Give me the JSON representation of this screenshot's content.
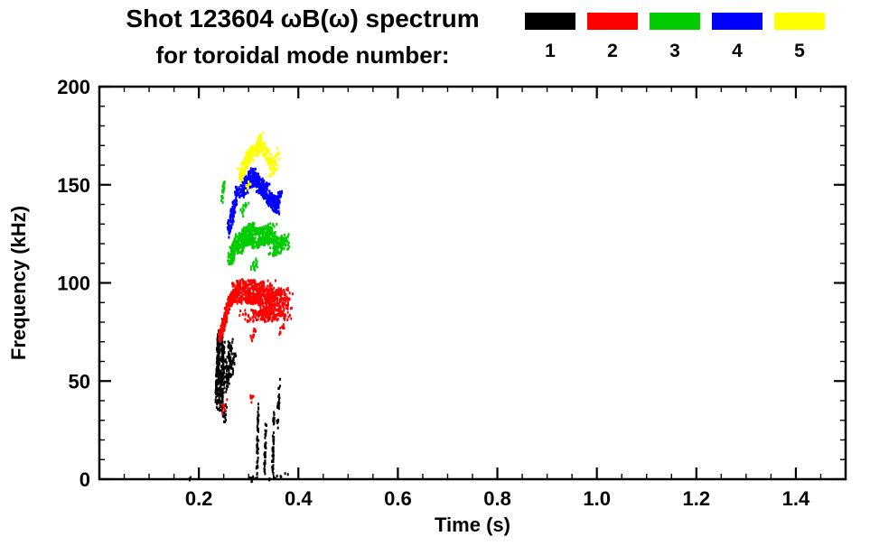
{
  "header": {
    "title_line1": "Shot 123604 ωB(ω) spectrum",
    "title_line2": "for toroidal mode number:"
  },
  "legend": {
    "items": [
      {
        "label": "1",
        "color": "#000000"
      },
      {
        "label": "2",
        "color": "#ff0000"
      },
      {
        "label": "3",
        "color": "#00cc00"
      },
      {
        "label": "4",
        "color": "#0000ff"
      },
      {
        "label": "5",
        "color": "#ffff00"
      }
    ]
  },
  "chart_data": {
    "type": "scatter",
    "title": "Shot 123604 ωB(ω) spectrum for toroidal mode number: 1-5",
    "xlabel": "Time (s)",
    "ylabel": "Frequency (kHz)",
    "xlim": [
      0,
      1.5
    ],
    "ylim": [
      0,
      200
    ],
    "xticks": [
      0.2,
      0.4,
      0.6,
      0.8,
      1.0,
      1.2,
      1.4
    ],
    "xtick_labels": [
      "0.2",
      "0.4",
      "0.6",
      "0.8",
      "1.0",
      "1.2",
      "1.4"
    ],
    "yticks": [
      0,
      50,
      100,
      150,
      200
    ],
    "ytick_labels": [
      "0",
      "50",
      "100",
      "150",
      "200"
    ],
    "x_minor_step": 0.05,
    "y_minor_step": 10,
    "grid": false,
    "legend_position": "top",
    "series": [
      {
        "name": "toroidal-mode-1",
        "label": "1",
        "mode": 1,
        "color": "#000000",
        "segments": [
          {
            "t": [
              0.234,
              0.238
            ],
            "f": [
              40,
              70
            ],
            "n": 150,
            "jt": 0.003,
            "jf": 4
          },
          {
            "t": [
              0.242,
              0.247
            ],
            "f": [
              38,
              72
            ],
            "n": 170,
            "jt": 0.004,
            "jf": 4
          },
          {
            "t": [
              0.252,
              0.262
            ],
            "f": [
              48,
              68
            ],
            "n": 90,
            "jt": 0.005,
            "jf": 5
          },
          {
            "t": [
              0.262,
              0.27
            ],
            "f": [
              55,
              64
            ],
            "n": 30,
            "jt": 0.004,
            "jf": 4
          },
          {
            "t": [
              0.236,
              0.24
            ],
            "f": [
              70,
              76
            ],
            "n": 20,
            "jt": 0.003,
            "jf": 2
          },
          {
            "t": [
              0.248,
              0.253
            ],
            "f": [
              30,
              38
            ],
            "n": 14,
            "jt": 0.003,
            "jf": 2
          },
          {
            "t": [
              0.315,
              0.318
            ],
            "f": [
              3,
              40
            ],
            "n": 60,
            "jt": 0.0015,
            "jf": 2
          },
          {
            "t": [
              0.33,
              0.333
            ],
            "f": [
              3,
              28
            ],
            "n": 40,
            "jt": 0.0015,
            "jf": 2
          },
          {
            "t": [
              0.346,
              0.349
            ],
            "f": [
              3,
              34
            ],
            "n": 50,
            "jt": 0.0015,
            "jf": 2
          },
          {
            "t": [
              0.356,
              0.36
            ],
            "f": [
              26,
              50
            ],
            "n": 25,
            "jt": 0.002,
            "jf": 2
          },
          {
            "t": [
              0.176,
              0.184
            ],
            "f": [
              0,
              2
            ],
            "n": 4,
            "jt": 0.002,
            "jf": 1
          },
          {
            "t": [
              0.3,
              0.316
            ],
            "f": [
              0,
              3
            ],
            "n": 8,
            "jt": 0.004,
            "jf": 1
          },
          {
            "t": [
              0.332,
              0.372
            ],
            "f": [
              0,
              3
            ],
            "n": 10,
            "jt": 0.006,
            "jf": 1
          }
        ]
      },
      {
        "name": "toroidal-mode-2",
        "label": "2",
        "mode": 2,
        "color": "#ff0000",
        "segments": [
          {
            "t": [
              0.24,
              0.258
            ],
            "f": [
              72,
              90
            ],
            "n": 150,
            "jt": 0.003,
            "jf": 3
          },
          {
            "t": [
              0.258,
              0.282
            ],
            "f": [
              90,
              100
            ],
            "n": 160,
            "jt": 0.003,
            "jf": 3
          },
          {
            "t": [
              0.282,
              0.33
            ],
            "f": [
              96,
              96
            ],
            "n": 380,
            "jt": 0.024,
            "jf": 6
          },
          {
            "t": [
              0.33,
              0.368
            ],
            "f": [
              91,
              91
            ],
            "n": 300,
            "jt": 0.019,
            "jf": 7
          },
          {
            "t": [
              0.3,
              0.36
            ],
            "f": [
              84,
              84
            ],
            "n": 140,
            "jt": 0.03,
            "jf": 3
          },
          {
            "t": [
              0.246,
              0.252
            ],
            "f": [
              35,
              41
            ],
            "n": 10,
            "jt": 0.003,
            "jf": 2
          },
          {
            "t": [
              0.3,
              0.308
            ],
            "f": [
              40,
              45
            ],
            "n": 8,
            "jt": 0.003,
            "jf": 2
          },
          {
            "t": [
              0.302,
              0.31
            ],
            "f": [
              72,
              76
            ],
            "n": 12,
            "jt": 0.004,
            "jf": 2
          },
          {
            "t": [
              0.362,
              0.37
            ],
            "f": [
              76,
              80
            ],
            "n": 10,
            "jt": 0.003,
            "jf": 2
          }
        ]
      },
      {
        "name": "toroidal-mode-3",
        "label": "3",
        "mode": 3,
        "color": "#00cc00",
        "segments": [
          {
            "t": [
              0.244,
              0.25
            ],
            "f": [
              143,
              152
            ],
            "n": 26,
            "jt": 0.002,
            "jf": 2
          },
          {
            "t": [
              0.26,
              0.276
            ],
            "f": [
              113,
              122
            ],
            "n": 110,
            "jt": 0.004,
            "jf": 4
          },
          {
            "t": [
              0.276,
              0.305
            ],
            "f": [
              120,
              127
            ],
            "n": 240,
            "jt": 0.007,
            "jf": 5
          },
          {
            "t": [
              0.305,
              0.345
            ],
            "f": [
              123,
              126
            ],
            "n": 240,
            "jt": 0.012,
            "jf": 5
          },
          {
            "t": [
              0.345,
              0.374
            ],
            "f": [
              118,
              122
            ],
            "n": 120,
            "jt": 0.009,
            "jf": 4
          },
          {
            "t": [
              0.285,
              0.296
            ],
            "f": [
              136,
              141
            ],
            "n": 16,
            "jt": 0.004,
            "jf": 2
          },
          {
            "t": [
              0.304,
              0.316
            ],
            "f": [
              108,
              112
            ],
            "n": 18,
            "jt": 0.004,
            "jf": 2
          }
        ]
      },
      {
        "name": "toroidal-mode-4",
        "label": "4",
        "mode": 4,
        "color": "#0000ff",
        "segments": [
          {
            "t": [
              0.258,
              0.277
            ],
            "f": [
              127,
              148
            ],
            "n": 140,
            "jt": 0.003,
            "jf": 4
          },
          {
            "t": [
              0.283,
              0.31
            ],
            "f": [
              147,
              156
            ],
            "n": 200,
            "jt": 0.005,
            "jf": 4
          },
          {
            "t": [
              0.31,
              0.336
            ],
            "f": [
              153,
              147
            ],
            "n": 170,
            "jt": 0.006,
            "jf": 4
          },
          {
            "t": [
              0.336,
              0.358
            ],
            "f": [
              145,
              139
            ],
            "n": 130,
            "jt": 0.005,
            "jf": 4
          },
          {
            "t": [
              0.352,
              0.364
            ],
            "f": [
              140,
              146
            ],
            "n": 40,
            "jt": 0.003,
            "jf": 3
          }
        ]
      },
      {
        "name": "toroidal-mode-5",
        "label": "5",
        "mode": 5,
        "color": "#ffff00",
        "segments": [
          {
            "t": [
              0.28,
              0.3
            ],
            "f": [
              155,
              166
            ],
            "n": 90,
            "jt": 0.004,
            "jf": 4
          },
          {
            "t": [
              0.3,
              0.326
            ],
            "f": [
              164,
              174
            ],
            "n": 110,
            "jt": 0.004,
            "jf": 4
          },
          {
            "t": [
              0.326,
              0.342
            ],
            "f": [
              170,
              162
            ],
            "n": 60,
            "jt": 0.004,
            "jf": 4
          },
          {
            "t": [
              0.342,
              0.358
            ],
            "f": [
              157,
              166
            ],
            "n": 45,
            "jt": 0.004,
            "jf": 5
          },
          {
            "t": [
              0.293,
              0.303
            ],
            "f": [
              148,
              152
            ],
            "n": 10,
            "jt": 0.003,
            "jf": 2
          }
        ]
      }
    ]
  }
}
